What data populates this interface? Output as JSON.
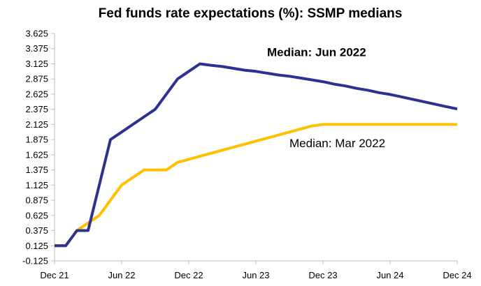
{
  "chart_data": {
    "type": "line",
    "title": "Fed funds rate expectations (%): SSMP medians",
    "xlabel": "",
    "ylabel": "",
    "x_ticks": [
      "Dec 21",
      "Jun 22",
      "Dec 22",
      "Jun 23",
      "Dec 23",
      "Jun 24",
      "Dec 24"
    ],
    "y_ticks": [
      "-0.125",
      "0.125",
      "0.375",
      "0.625",
      "0.875",
      "1.125",
      "1.375",
      "1.625",
      "1.875",
      "2.125",
      "2.375",
      "2.625",
      "2.875",
      "3.125",
      "3.375",
      "3.625"
    ],
    "ylim": [
      -0.125,
      3.625
    ],
    "x_range": [
      "Dec 21",
      "Dec 24"
    ],
    "grid": false,
    "legend": "none",
    "series": [
      {
        "name": "Median: Jun 2022",
        "color": "#2e3192",
        "points": [
          [
            "2021-12",
            0.125
          ],
          [
            "2022-01",
            0.125
          ],
          [
            "2022-02",
            0.375
          ],
          [
            "2022-03",
            0.375
          ],
          [
            "2022-04",
            1.125
          ],
          [
            "2022-05",
            1.875
          ],
          [
            "2022-06",
            2.0
          ],
          [
            "2022-07",
            2.125
          ],
          [
            "2022-08",
            2.25
          ],
          [
            "2022-09",
            2.375
          ],
          [
            "2022-10",
            2.625
          ],
          [
            "2022-11",
            2.875
          ],
          [
            "2022-12",
            3.0
          ],
          [
            "2023-01",
            3.125
          ],
          [
            "2023-02",
            3.1
          ],
          [
            "2023-03",
            3.08
          ],
          [
            "2023-04",
            3.05
          ],
          [
            "2023-05",
            3.02
          ],
          [
            "2023-06",
            3.0
          ],
          [
            "2023-07",
            2.97
          ],
          [
            "2023-08",
            2.94
          ],
          [
            "2023-09",
            2.92
          ],
          [
            "2023-10",
            2.89
          ],
          [
            "2023-11",
            2.86
          ],
          [
            "2023-12",
            2.83
          ],
          [
            "2024-01",
            2.79
          ],
          [
            "2024-02",
            2.76
          ],
          [
            "2024-03",
            2.72
          ],
          [
            "2024-04",
            2.69
          ],
          [
            "2024-05",
            2.65
          ],
          [
            "2024-06",
            2.62
          ],
          [
            "2024-07",
            2.58
          ],
          [
            "2024-08",
            2.54
          ],
          [
            "2024-09",
            2.5
          ],
          [
            "2024-10",
            2.46
          ],
          [
            "2024-11",
            2.42
          ],
          [
            "2024-12",
            2.38
          ]
        ]
      },
      {
        "name": "Median: Mar 2022",
        "color": "#ffc000",
        "points": [
          [
            "2021-12",
            0.125
          ],
          [
            "2022-01",
            0.125
          ],
          [
            "2022-02",
            0.375
          ],
          [
            "2022-03",
            0.5
          ],
          [
            "2022-04",
            0.625
          ],
          [
            "2022-05",
            0.875
          ],
          [
            "2022-06",
            1.125
          ],
          [
            "2022-07",
            1.25
          ],
          [
            "2022-08",
            1.375
          ],
          [
            "2022-09",
            1.375
          ],
          [
            "2022-10",
            1.375
          ],
          [
            "2022-11",
            1.5
          ],
          [
            "2022-12",
            1.55
          ],
          [
            "2023-01",
            1.6
          ],
          [
            "2023-02",
            1.65
          ],
          [
            "2023-03",
            1.7
          ],
          [
            "2023-04",
            1.75
          ],
          [
            "2023-05",
            1.8
          ],
          [
            "2023-06",
            1.85
          ],
          [
            "2023-07",
            1.9
          ],
          [
            "2023-08",
            1.95
          ],
          [
            "2023-09",
            2.0
          ],
          [
            "2023-10",
            2.05
          ],
          [
            "2023-11",
            2.1
          ],
          [
            "2023-12",
            2.125
          ],
          [
            "2024-01",
            2.125
          ],
          [
            "2024-02",
            2.125
          ],
          [
            "2024-03",
            2.125
          ],
          [
            "2024-04",
            2.125
          ],
          [
            "2024-05",
            2.125
          ],
          [
            "2024-06",
            2.125
          ],
          [
            "2024-07",
            2.125
          ],
          [
            "2024-08",
            2.125
          ],
          [
            "2024-09",
            2.125
          ],
          [
            "2024-10",
            2.125
          ],
          [
            "2024-11",
            2.125
          ],
          [
            "2024-12",
            2.125
          ]
        ]
      }
    ],
    "annotations": [
      {
        "text": "Median: Jun 2022",
        "x": "2023-07",
        "y": 3.25,
        "bold": true,
        "series": 0
      },
      {
        "text": "Median: Mar 2022",
        "x": "2023-09",
        "y": 1.75,
        "bold": false,
        "series": 1
      }
    ]
  }
}
